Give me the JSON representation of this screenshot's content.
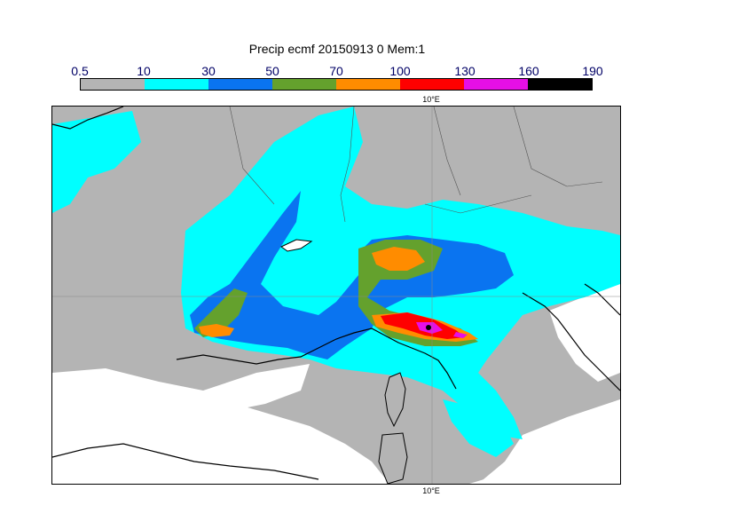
{
  "title": "Precip ecmf 20150913 0 Mem:1",
  "colorbar": {
    "ticks": [
      "0.5",
      "10",
      "30",
      "50",
      "70",
      "100",
      "130",
      "160",
      "190"
    ],
    "colors": [
      "#b4b4b4",
      "#00ffff",
      "#0a74f0",
      "#64a12d",
      "#ff8c00",
      "#ff0000",
      "#e60fe6",
      "#000000"
    ]
  },
  "map": {
    "lon_label_top": "10°E",
    "lon_label_bottom": "10°E"
  }
}
